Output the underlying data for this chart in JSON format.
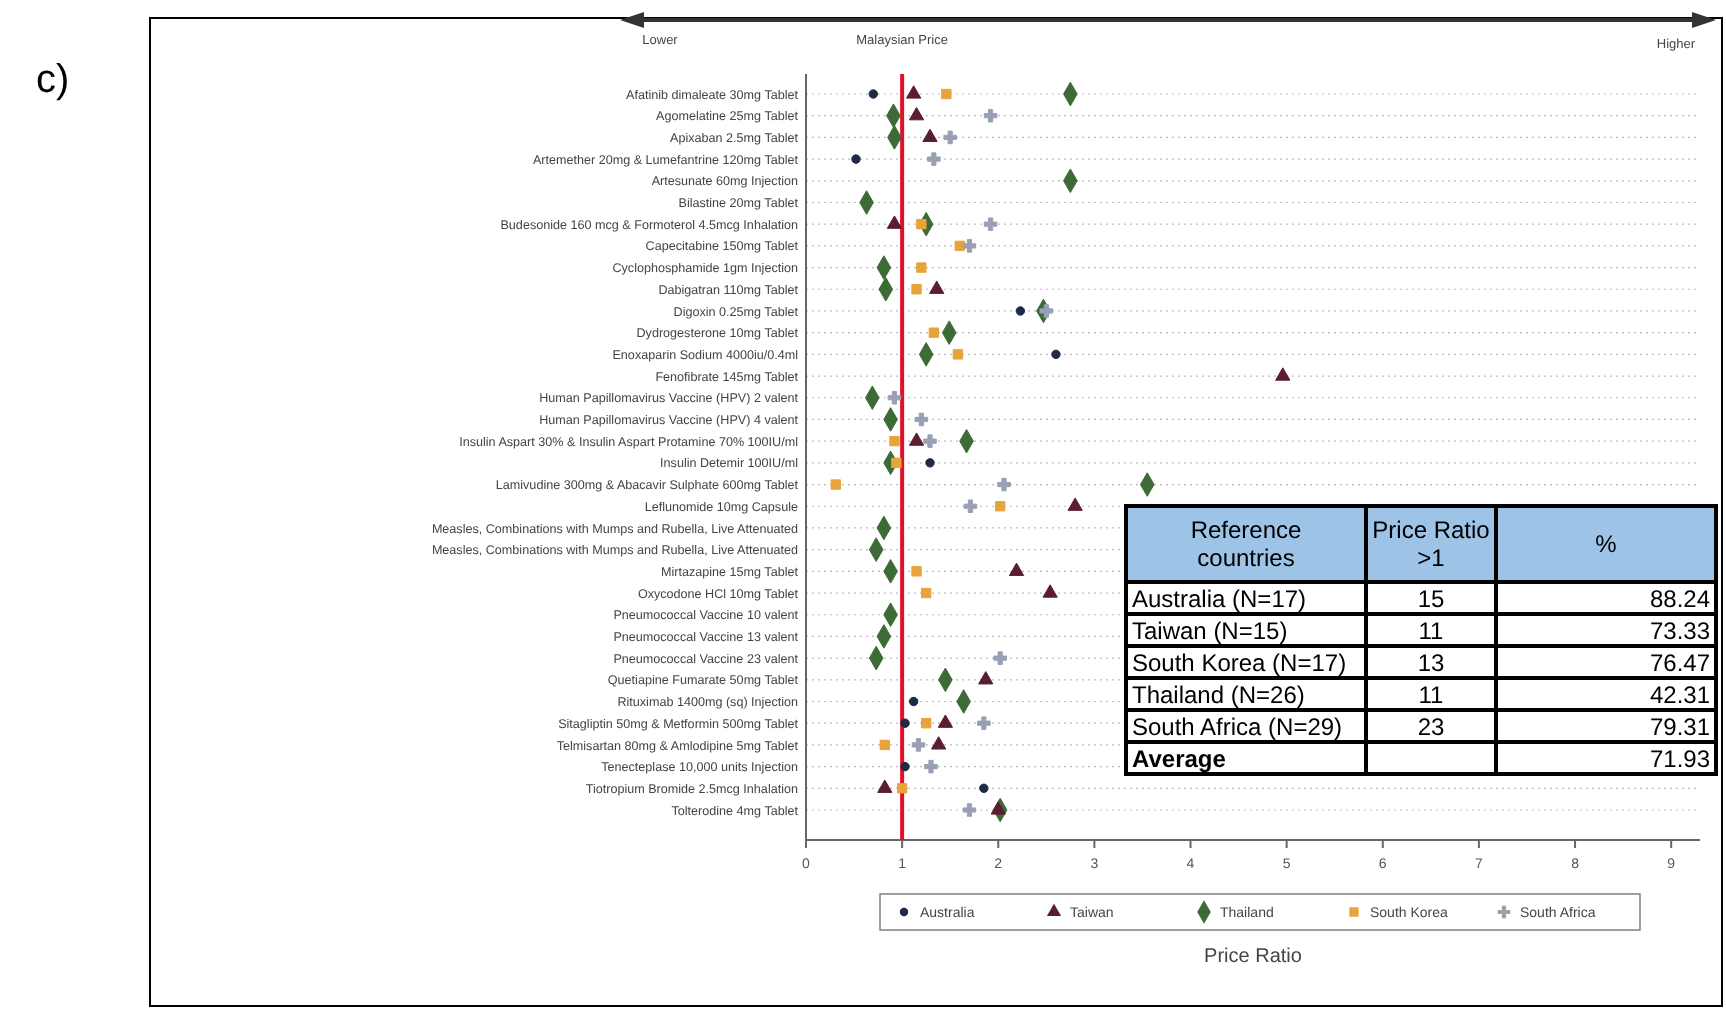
{
  "chart_data": {
    "type": "scatter",
    "orientation": "horizontal",
    "title": "c)",
    "xlabel": "Price Ratio",
    "categories": [
      "Afatinib dimaleate 30mg Tablet",
      "Agomelatine 25mg Tablet",
      "Apixaban 2.5mg Tablet",
      "Artemether 20mg & Lumefantrine 120mg Tablet",
      "Artesunate 60mg Injection",
      "Bilastine 20mg Tablet",
      "Budesonide 160 mcg & Formoterol 4.5mcg Inhalation",
      "Capecitabine 150mg Tablet",
      "Cyclophosphamide 1gm Injection",
      "Dabigatran 110mg Tablet",
      "Digoxin 0.25mg Tablet",
      "Dydrogesterone 10mg Tablet",
      "Enoxaparin Sodium 4000iu/0.4ml",
      "Fenofibrate 145mg Tablet",
      "Human Papillomavirus Vaccine (HPV) 2 valent",
      "Human Papillomavirus Vaccine (HPV) 4 valent",
      "Insulin Aspart 30% & Insulin Aspart Protamine 70% 100IU/ml",
      "Insulin Detemir 100IU/ml",
      "Lamivudine 300mg & Abacavir Sulphate 600mg Tablet",
      "Leflunomide 10mg Capsule",
      "Measles, Combinations with Mumps and Rubella, Live Attenuated",
      "Measles, Combinations with Mumps and Rubella, Live Attenuated",
      "Mirtazapine 15mg Tablet",
      "Oxycodone HCl 10mg Tablet",
      "Pneumococcal Vaccine 10 valent",
      "Pneumococcal Vaccine 13 valent",
      "Pneumococcal Vaccine 23 valent",
      "Quetiapine Fumarate 50mg Tablet",
      "Rituximab 1400mg (sq) Injection",
      "Sitagliptin 50mg & Metformin 500mg Tablet",
      "Telmisartan 80mg & Amlodipine 5mg Tablet",
      "Tenecteplase 10,000 units Injection",
      "Tiotropium Bromide 2.5mcg Inhalation",
      "Tolterodine 4mg Tablet"
    ],
    "series": [
      {
        "name": "Australia",
        "color": "#1f2a44",
        "marker": "circle",
        "values": [
          0.7,
          null,
          null,
          0.52,
          null,
          null,
          null,
          null,
          null,
          null,
          2.23,
          null,
          2.6,
          null,
          null,
          null,
          null,
          1.29,
          null,
          null,
          null,
          null,
          null,
          null,
          null,
          null,
          null,
          null,
          1.12,
          1.03,
          null,
          1.03,
          1.85,
          null
        ]
      },
      {
        "name": "Taiwan",
        "color": "#5a1e2e",
        "marker": "triangle",
        "values": [
          1.12,
          1.15,
          1.29,
          null,
          null,
          null,
          0.92,
          null,
          null,
          1.36,
          null,
          null,
          null,
          4.96,
          null,
          null,
          1.15,
          null,
          null,
          2.8,
          null,
          null,
          2.19,
          2.54,
          null,
          null,
          null,
          1.87,
          null,
          1.45,
          1.38,
          null,
          0.82,
          2.0
        ]
      },
      {
        "name": "Thailand",
        "color": "#3d6b35",
        "marker": "diamond",
        "values": [
          2.75,
          0.91,
          0.92,
          null,
          2.75,
          0.63,
          1.25,
          null,
          0.81,
          0.83,
          2.47,
          1.49,
          1.25,
          null,
          0.69,
          0.88,
          1.67,
          0.88,
          3.55,
          null,
          0.81,
          0.73,
          0.88,
          null,
          0.88,
          0.81,
          0.73,
          1.45,
          1.64,
          null,
          null,
          null,
          null,
          2.02
        ]
      },
      {
        "name": "South Korea",
        "color": "#e8a33a",
        "marker": "square",
        "values": [
          1.46,
          null,
          null,
          null,
          null,
          null,
          1.2,
          1.6,
          1.2,
          1.15,
          null,
          1.33,
          1.58,
          null,
          null,
          null,
          0.92,
          0.94,
          0.31,
          2.02,
          null,
          null,
          1.15,
          1.25,
          null,
          null,
          null,
          null,
          null,
          1.25,
          0.82,
          null,
          1.0,
          null
        ]
      },
      {
        "name": "South Africa",
        "color": "#9aa0b4",
        "marker": "cross",
        "values": [
          null,
          1.92,
          1.5,
          1.33,
          null,
          null,
          1.92,
          1.7,
          null,
          null,
          2.5,
          null,
          null,
          null,
          0.92,
          1.2,
          1.29,
          null,
          2.06,
          1.71,
          null,
          null,
          null,
          null,
          null,
          null,
          2.02,
          null,
          null,
          1.85,
          1.17,
          1.3,
          null,
          1.7
        ]
      }
    ],
    "xlim": [
      0,
      9.3
    ],
    "xticks": [
      0,
      1,
      2,
      3,
      4,
      5,
      6,
      7,
      8,
      9
    ],
    "grid": "y",
    "legend": "bottom",
    "ref_lines": [
      {
        "axis": "x",
        "value": 1,
        "label": "Malaysian Price",
        "color": "#e0102a"
      }
    ],
    "annotations": [
      "Lower",
      "Higher",
      "Reference countries",
      "Price Ratio >1",
      "%",
      "Australia (N=17)",
      "15",
      "88.24",
      "Taiwan (N=15)",
      "11",
      "73.33",
      "South Korea (N=17)",
      "13",
      "76.47",
      "Thailand (N=26)",
      "11",
      "42.31",
      "South Africa (N=29)",
      "23",
      "79.31",
      "Average",
      "71.93"
    ]
  }
}
